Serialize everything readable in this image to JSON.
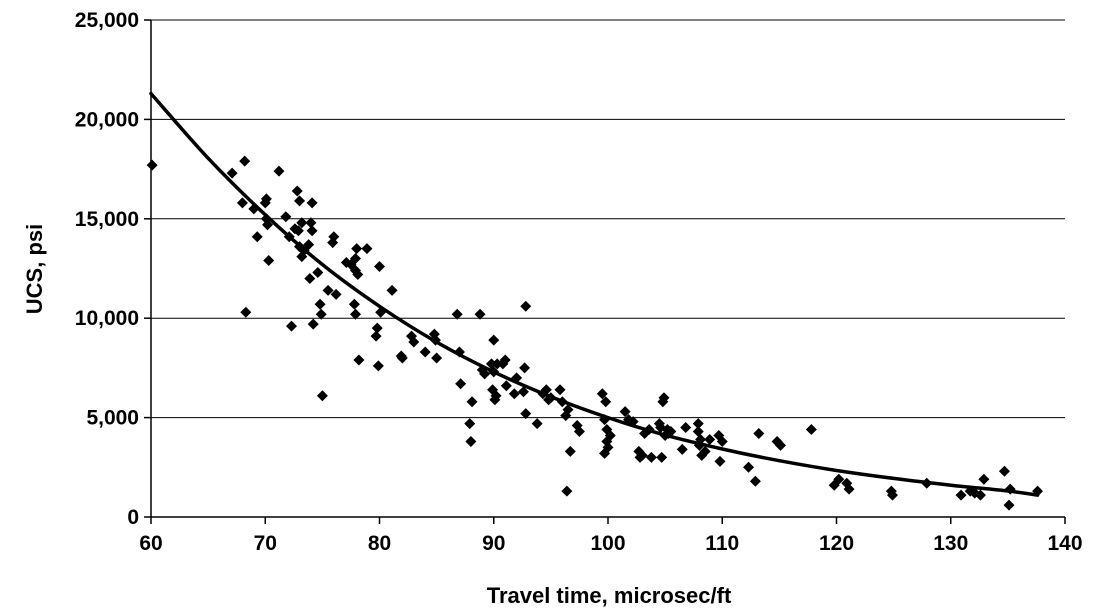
{
  "chart_data": {
    "type": "scatter",
    "xlabel": "Travel time, microsec/ft",
    "ylabel": "UCS, psi",
    "xlim": [
      60,
      140
    ],
    "ylim": [
      0,
      25000
    ],
    "x_ticks": [
      "60",
      "70",
      "80",
      "90",
      "100",
      "110",
      "120",
      "130",
      "140"
    ],
    "y_ticks": [
      "0",
      "5,000",
      "10,000",
      "15,000",
      "20,000",
      "25,000"
    ],
    "grid": "horizontal",
    "legend": "none",
    "marker": "diamond",
    "colors": {
      "marker": "#000000",
      "trend": "#000000",
      "grid": "#000000"
    },
    "series": [
      {
        "values": [
          [
            60.1,
            17700
          ],
          [
            67.1,
            17300
          ],
          [
            68.2,
            17900
          ],
          [
            68.0,
            15800
          ],
          [
            68.3,
            10300
          ],
          [
            69.0,
            15500
          ],
          [
            69.3,
            14100
          ],
          [
            70.1,
            16000
          ],
          [
            70.0,
            15800
          ],
          [
            70.1,
            15000
          ],
          [
            70.2,
            14700
          ],
          [
            70.3,
            12900
          ],
          [
            71.2,
            17400
          ],
          [
            71.8,
            15100
          ],
          [
            72.1,
            14100
          ],
          [
            72.3,
            9600
          ],
          [
            72.6,
            14500
          ],
          [
            72.8,
            16400
          ],
          [
            73.0,
            15900
          ],
          [
            72.9,
            14400
          ],
          [
            73.0,
            13600
          ],
          [
            73.2,
            13100
          ],
          [
            73.2,
            14800
          ],
          [
            73.4,
            13400
          ],
          [
            73.8,
            13700
          ],
          [
            73.9,
            12000
          ],
          [
            74.0,
            14800
          ],
          [
            74.1,
            15800
          ],
          [
            74.2,
            9700
          ],
          [
            74.1,
            14400
          ],
          [
            74.6,
            12300
          ],
          [
            74.8,
            10700
          ],
          [
            74.9,
            10200
          ],
          [
            75.0,
            6100
          ],
          [
            75.5,
            11400
          ],
          [
            75.9,
            13800
          ],
          [
            76.0,
            14100
          ],
          [
            76.2,
            11200
          ],
          [
            77.1,
            12800
          ],
          [
            77.5,
            12700
          ],
          [
            77.9,
            13000
          ],
          [
            77.9,
            12400
          ],
          [
            77.8,
            10700
          ],
          [
            77.9,
            10200
          ],
          [
            78.0,
            13500
          ],
          [
            78.1,
            12200
          ],
          [
            78.2,
            7900
          ],
          [
            78.9,
            13500
          ],
          [
            79.7,
            9100
          ],
          [
            79.8,
            9500
          ],
          [
            79.9,
            7600
          ],
          [
            80.0,
            12600
          ],
          [
            80.1,
            10300
          ],
          [
            81.1,
            11400
          ],
          [
            81.9,
            8100
          ],
          [
            82.0,
            8000
          ],
          [
            82.8,
            9100
          ],
          [
            83.0,
            8800
          ],
          [
            84.0,
            8300
          ],
          [
            84.8,
            9200
          ],
          [
            84.9,
            8900
          ],
          [
            85.0,
            8000
          ],
          [
            86.8,
            10200
          ],
          [
            87.0,
            8300
          ],
          [
            87.1,
            6700
          ],
          [
            87.9,
            4700
          ],
          [
            88.0,
            3800
          ],
          [
            88.1,
            5800
          ],
          [
            88.8,
            10200
          ],
          [
            89.0,
            7400
          ],
          [
            89.2,
            7200
          ],
          [
            89.8,
            7700
          ],
          [
            89.9,
            6400
          ],
          [
            90.0,
            7300
          ],
          [
            90.1,
            5900
          ],
          [
            90.2,
            6100
          ],
          [
            90.3,
            7700
          ],
          [
            90.0,
            8900
          ],
          [
            90.8,
            7700
          ],
          [
            91.0,
            7900
          ],
          [
            91.1,
            6600
          ],
          [
            91.8,
            6200
          ],
          [
            92.0,
            7000
          ],
          [
            92.6,
            6300
          ],
          [
            92.8,
            10600
          ],
          [
            92.7,
            7500
          ],
          [
            92.8,
            5200
          ],
          [
            93.8,
            4700
          ],
          [
            94.3,
            6200
          ],
          [
            94.6,
            6400
          ],
          [
            94.8,
            5900
          ],
          [
            95.0,
            6000
          ],
          [
            95.8,
            6400
          ],
          [
            96.0,
            5800
          ],
          [
            96.3,
            5100
          ],
          [
            96.5,
            5400
          ],
          [
            96.4,
            1300
          ],
          [
            96.7,
            3300
          ],
          [
            97.3,
            4600
          ],
          [
            97.5,
            4300
          ],
          [
            99.5,
            6200
          ],
          [
            99.7,
            4900
          ],
          [
            99.8,
            5800
          ],
          [
            99.9,
            4400
          ],
          [
            99.9,
            3800
          ],
          [
            100.0,
            3500
          ],
          [
            99.7,
            3200
          ],
          [
            100.2,
            4100
          ],
          [
            101.5,
            5300
          ],
          [
            101.8,
            4900
          ],
          [
            102.2,
            4800
          ],
          [
            102.7,
            3300
          ],
          [
            102.8,
            3000
          ],
          [
            103.0,
            3100
          ],
          [
            103.2,
            4200
          ],
          [
            103.6,
            4400
          ],
          [
            103.8,
            3000
          ],
          [
            104.5,
            4700
          ],
          [
            104.6,
            4500
          ],
          [
            104.7,
            3000
          ],
          [
            104.8,
            5800
          ],
          [
            104.9,
            6000
          ],
          [
            105.0,
            4100
          ],
          [
            105.2,
            4400
          ],
          [
            105.3,
            4200
          ],
          [
            105.5,
            4300
          ],
          [
            106.5,
            3400
          ],
          [
            106.8,
            4500
          ],
          [
            107.9,
            4700
          ],
          [
            107.9,
            4300
          ],
          [
            108.0,
            3600
          ],
          [
            108.1,
            3900
          ],
          [
            108.2,
            3100
          ],
          [
            108.5,
            3300
          ],
          [
            108.9,
            3900
          ],
          [
            109.7,
            4100
          ],
          [
            109.8,
            2800
          ],
          [
            110.0,
            3800
          ],
          [
            112.3,
            2500
          ],
          [
            112.9,
            1800
          ],
          [
            113.2,
            4200
          ],
          [
            114.8,
            3800
          ],
          [
            115.1,
            3600
          ],
          [
            117.8,
            4400
          ],
          [
            119.8,
            1600
          ],
          [
            120.2,
            1900
          ],
          [
            120.9,
            1700
          ],
          [
            121.1,
            1400
          ],
          [
            124.8,
            1300
          ],
          [
            124.9,
            1100
          ],
          [
            127.9,
            1700
          ],
          [
            130.9,
            1100
          ],
          [
            131.7,
            1300
          ],
          [
            132.1,
            1200
          ],
          [
            132.6,
            1100
          ],
          [
            132.9,
            1900
          ],
          [
            134.7,
            2300
          ],
          [
            135.1,
            600
          ],
          [
            135.2,
            1400
          ],
          [
            137.6,
            1300
          ]
        ]
      }
    ],
    "trendline": {
      "type": "exponential",
      "points": [
        [
          60,
          21300
        ],
        [
          65,
          18050
        ],
        [
          70,
          15200
        ],
        [
          75,
          12700
        ],
        [
          80,
          10600
        ],
        [
          85,
          8800
        ],
        [
          90,
          7300
        ],
        [
          95,
          6050
        ],
        [
          100,
          5000
        ],
        [
          105,
          4120
        ],
        [
          110,
          3420
        ],
        [
          115,
          2830
        ],
        [
          120,
          2340
        ],
        [
          125,
          1940
        ],
        [
          130,
          1600
        ],
        [
          135,
          1310
        ],
        [
          137.6,
          1100
        ]
      ]
    }
  }
}
